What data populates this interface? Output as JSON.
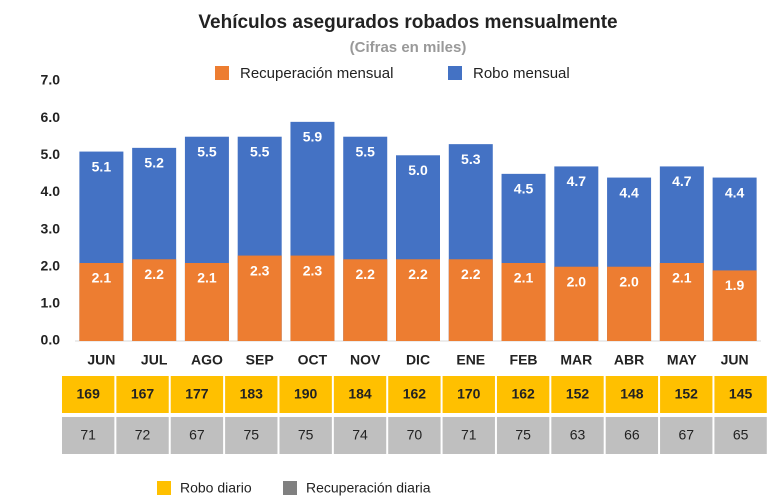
{
  "chart_data": {
    "type": "bar",
    "overlap": true,
    "title": "Vehículos asegurados robados mensualmente",
    "subtitle": "(Cifras en miles)",
    "categories": [
      "JUN",
      "JUL",
      "AGO",
      "SEP",
      "OCT",
      "NOV",
      "DIC",
      "ENE",
      "FEB",
      "MAR",
      "ABR",
      "MAY",
      "JUN"
    ],
    "series": [
      {
        "name": "Robo mensual",
        "color": "#4472c4",
        "values": [
          5.1,
          5.2,
          5.5,
          5.5,
          5.9,
          5.5,
          5.0,
          5.3,
          4.5,
          4.7,
          4.4,
          4.7,
          4.4
        ],
        "value_labels": [
          "5.1",
          "5.2",
          "5.5",
          "5.5",
          "5.9",
          "5.5",
          "5.0",
          "5.3",
          "4.5",
          "4.7",
          "4.4",
          "4.7",
          "4.4"
        ]
      },
      {
        "name": "Recuperación mensual",
        "color": "#ed7d31",
        "values": [
          2.1,
          2.2,
          2.1,
          2.3,
          2.3,
          2.2,
          2.2,
          2.2,
          2.1,
          2.0,
          2.0,
          2.1,
          1.9
        ],
        "value_labels": [
          "2.1",
          "2.2",
          "2.1",
          "2.3",
          "2.3",
          "2.2",
          "2.2",
          "2.2",
          "2.1",
          "2.0",
          "2.0",
          "2.1",
          "1.9"
        ]
      }
    ],
    "ylim": [
      0,
      7
    ],
    "yticks": [
      {
        "value": 0,
        "label": "0.0"
      },
      {
        "value": 1,
        "label": "1.0"
      },
      {
        "value": 2,
        "label": "2.0"
      },
      {
        "value": 3,
        "label": "3.0"
      },
      {
        "value": 4,
        "label": "4.0"
      },
      {
        "value": 5,
        "label": "5.0"
      },
      {
        "value": 6,
        "label": "6.0"
      },
      {
        "value": 7,
        "label": "7.0"
      }
    ],
    "grid": false
  },
  "table": {
    "rows": [
      {
        "name": "Robo diario",
        "color": "#ffc000",
        "values": [
          169,
          167,
          177,
          183,
          190,
          184,
          162,
          170,
          162,
          152,
          148,
          152,
          145
        ]
      },
      {
        "name": "Recuperación diaria",
        "color": "#bfbfbf",
        "values": [
          71,
          72,
          67,
          75,
          75,
          74,
          70,
          71,
          75,
          63,
          66,
          67,
          65
        ]
      }
    ]
  }
}
